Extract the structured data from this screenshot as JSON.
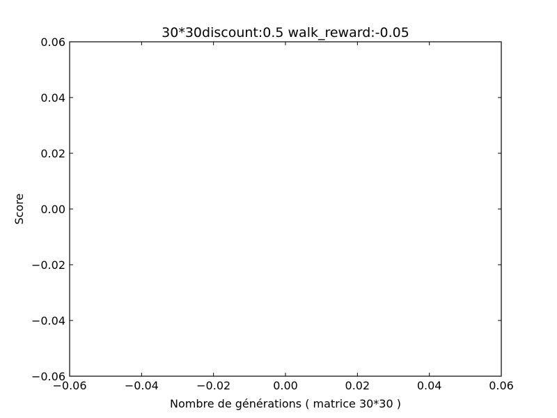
{
  "chart_data": {
    "type": "line",
    "title": "30*30discount:0.5 walk_reward:-0.05",
    "xlabel": "Nombre de générations ( matrice 30*30 )",
    "ylabel": "Score",
    "xlim": [
      -0.06,
      0.06
    ],
    "ylim": [
      -0.06,
      0.06
    ],
    "xticks": [
      -0.06,
      -0.04,
      -0.02,
      0.0,
      0.02,
      0.04,
      0.06
    ],
    "yticks": [
      -0.06,
      -0.04,
      -0.02,
      0.0,
      0.02,
      0.04,
      0.06
    ],
    "xtick_labels": [
      "−0.06",
      "−0.04",
      "−0.02",
      "0.00",
      "0.02",
      "0.04",
      "0.06"
    ],
    "ytick_labels": [
      "−0.06",
      "−0.04",
      "−0.02",
      "0.00",
      "0.02",
      "0.04",
      "0.06"
    ],
    "grid": false,
    "series": []
  }
}
